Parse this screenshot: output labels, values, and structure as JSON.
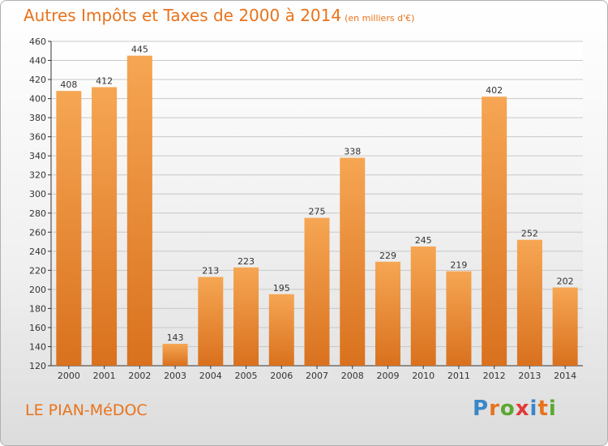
{
  "chart_data": {
    "type": "bar",
    "title": "Autres Impôts et Taxes de 2000 à 2014",
    "unit_note": "(en milliers d'€)",
    "categories": [
      "2000",
      "2001",
      "2002",
      "2003",
      "2004",
      "2005",
      "2006",
      "2007",
      "2008",
      "2009",
      "2010",
      "2011",
      "2012",
      "2013",
      "2014"
    ],
    "values": [
      408,
      412,
      445,
      143,
      213,
      223,
      195,
      275,
      338,
      229,
      245,
      219,
      402,
      252,
      202
    ],
    "ylim": [
      120,
      460
    ],
    "yticks": [
      120,
      140,
      160,
      180,
      200,
      220,
      240,
      260,
      280,
      300,
      320,
      340,
      360,
      380,
      400,
      420,
      440,
      460
    ],
    "xlabel": "",
    "ylabel": "",
    "grid": true,
    "bar_color": "#e8842a"
  },
  "location": "LE PIAN-MéDOC",
  "logo": {
    "text": "Proxiti",
    "colors": [
      "#3a86c8",
      "#e8731c",
      "#5aa832",
      "#e23a3a",
      "#3a86c8",
      "#e8731c",
      "#5aa832"
    ]
  }
}
